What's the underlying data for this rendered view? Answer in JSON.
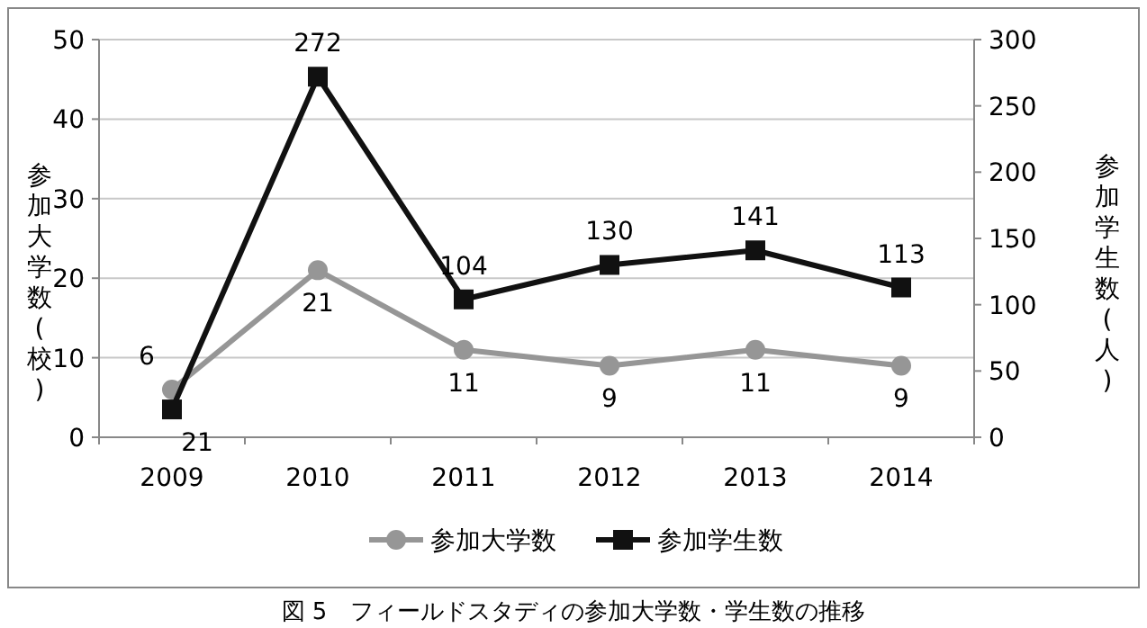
{
  "chart_data": {
    "type": "line",
    "categories": [
      "2009",
      "2010",
      "2011",
      "2012",
      "2013",
      "2014"
    ],
    "series": [
      {
        "name": "参加大学数",
        "color": "#969696",
        "values": [
          6,
          21,
          11,
          9,
          11,
          9
        ],
        "marker": "circle"
      },
      {
        "name": "参加学生数",
        "color": "#111111",
        "values": [
          21,
          272,
          104,
          130,
          141,
          113
        ],
        "marker": "square",
        "axis": "y2"
      }
    ],
    "ylabel": "参加大学数(校)",
    "y2label": "参加学生数(人)",
    "ylim": [
      0,
      50
    ],
    "yticks": [
      0,
      10,
      20,
      30,
      40,
      50
    ],
    "y2lim": [
      0,
      300
    ],
    "y2ticks": [
      0,
      50,
      100,
      150,
      200,
      250,
      300
    ],
    "grid": "y",
    "legend": "bottom",
    "data_labels": true,
    "annotations": [
      "図 5　フィールドスタディの参加大学数・学生数の推移"
    ]
  }
}
